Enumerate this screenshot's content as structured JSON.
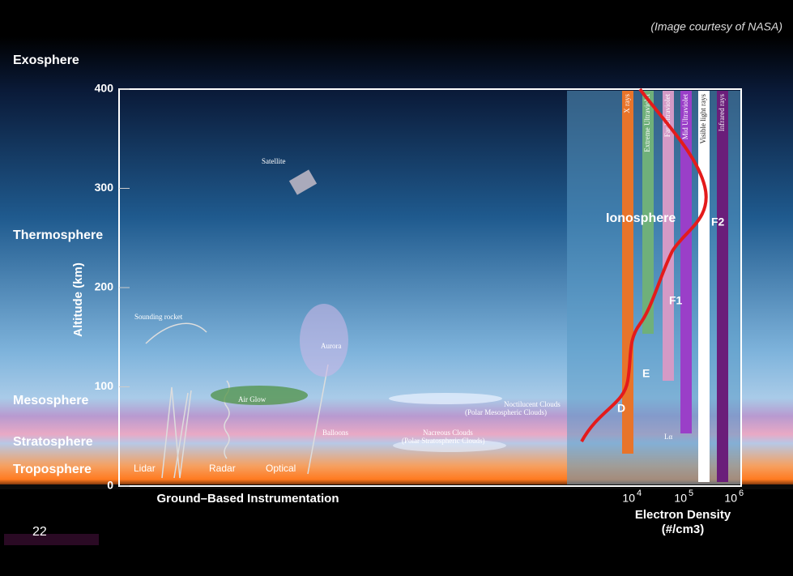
{
  "credit": "(Image courtesy of NASA)",
  "layers": [
    "Exosphere",
    "Thermosphere",
    "Mesosphere",
    "Stratosphere",
    "Troposphere"
  ],
  "altitude_axis": {
    "label": "Altitude (km)",
    "ticks": [
      0,
      100,
      200,
      300,
      400
    ]
  },
  "bands": [
    "X rays",
    "Extreme Ultraviolet",
    "Far Ultraviolet",
    "Mid Ultraviolet",
    "Visible light rays",
    "Infrared rays"
  ],
  "ionosphere": {
    "title": "Ionosphere",
    "regions": [
      "D",
      "E",
      "F1",
      "F2"
    ]
  },
  "scene_labels": {
    "satellite": "Satellite",
    "rocket": "Sounding rocket",
    "aurora": "Aurora",
    "airglow": "Air Glow",
    "noctilucent": "Noctilucent Clouds",
    "noctilucent_sub": "(Polar Mesospheric Clouds)",
    "balloons": "Balloons",
    "nacreous": "Nacreous Clouds",
    "nacreous_sub": "(Polar Stratospheric Clouds)",
    "lidar": "Lidar",
    "radar": "Radar",
    "optical": "Optical",
    "lyman": "Lα"
  },
  "ground_label": "Ground–Based Instrumentation",
  "density_axis": {
    "ticks": [
      {
        "base": "10",
        "exp": "4"
      },
      {
        "base": "10",
        "exp": "5"
      },
      {
        "base": "10",
        "exp": "6"
      }
    ],
    "label": "Electron Density",
    "unit": "(#/cm3)"
  },
  "page_number": "22"
}
